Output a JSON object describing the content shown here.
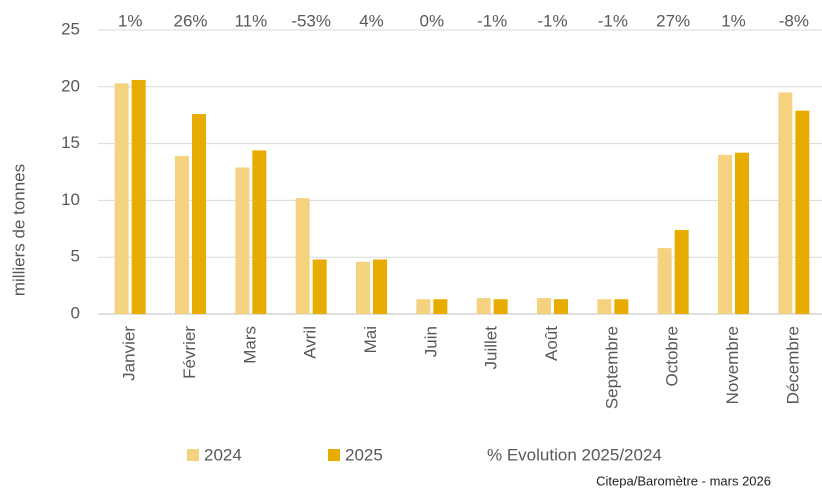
{
  "chart_data": {
    "type": "bar",
    "y_label": "milliers de tonnes",
    "categories": [
      "Janvier",
      "Février",
      "Mars",
      "Avril",
      "Mai",
      "Juin",
      "Juillet",
      "Août",
      "Septembre",
      "Octobre",
      "Novembre",
      "Décembre"
    ],
    "series": [
      {
        "name": "2024",
        "color": "#f5d27f",
        "values": [
          20.3,
          13.9,
          12.9,
          10.2,
          4.6,
          1.3,
          1.4,
          1.4,
          1.3,
          5.8,
          14.0,
          19.5
        ]
      },
      {
        "name": "2025",
        "color": "#e8ab00",
        "values": [
          20.6,
          17.6,
          14.4,
          4.8,
          4.8,
          1.3,
          1.3,
          1.3,
          1.3,
          7.4,
          14.2,
          17.9
        ]
      }
    ],
    "evolution": {
      "name": "% Evolution 2025/2024",
      "values": [
        1,
        26,
        11,
        -53,
        4,
        0,
        -1,
        -1,
        -1,
        27,
        1,
        -8
      ],
      "value_labels": [
        "1%",
        "26%",
        "11%",
        "-53%",
        "4%",
        "0%",
        "-1%",
        "-1%",
        "-1%",
        "27%",
        "1%",
        "-8%"
      ]
    },
    "ylim": [
      0,
      25
    ],
    "yticks": [
      0,
      5,
      10,
      15,
      20,
      25
    ],
    "grid": true,
    "source": "Citepa/Baromètre - mars 2026"
  }
}
